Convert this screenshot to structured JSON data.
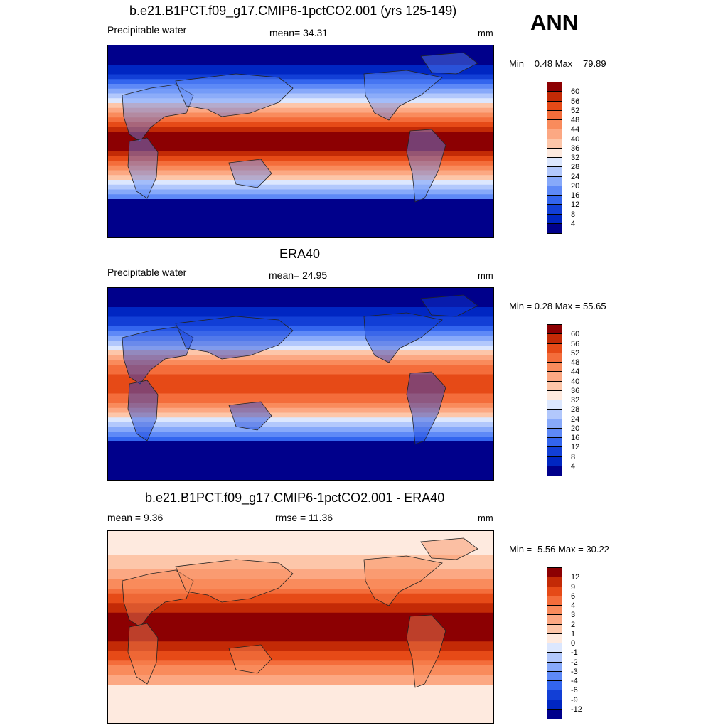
{
  "season": "ANN",
  "palette_abs": [
    "#00008b",
    "#0026c2",
    "#123fd6",
    "#3365ee",
    "#5e89f7",
    "#87a9fa",
    "#b2c8fc",
    "#dce7fe",
    "#feeadf",
    "#fdc6a9",
    "#fca883",
    "#f98b5c",
    "#f46d3b",
    "#e64a17",
    "#c32a06",
    "#8c0002"
  ],
  "palette_diff": [
    "#00008b",
    "#0026c2",
    "#123fd6",
    "#3365ee",
    "#5e89f7",
    "#87a9fa",
    "#b2c8fc",
    "#dce7fe",
    "#feeadf",
    "#fdc6a9",
    "#fca883",
    "#f98b5c",
    "#f46d3b",
    "#e64a17",
    "#c32a06",
    "#8c0002"
  ],
  "panels": [
    {
      "title": "b.e21.B1PCT.f09_g17.CMIP6-1pctCO2.001 (yrs 125-149)",
      "left_label": "Precipitable water",
      "center_label": "mean=  34.31",
      "units": "mm",
      "minmax": "Min =   0.48 Max =  79.89",
      "levels": [
        "60",
        "56",
        "52",
        "48",
        "44",
        "40",
        "36",
        "32",
        "28",
        "24",
        "20",
        "16",
        "12",
        "8",
        "4"
      ],
      "field": {
        "tropical_peak_level": 15,
        "polar_level": 0,
        "land_dry_level": 4
      }
    },
    {
      "title": "ERA40",
      "left_label": "Precipitable water",
      "center_label": "mean=  24.95",
      "units": "mm",
      "minmax": "Min =   0.28 Max =  55.65",
      "levels": [
        "60",
        "56",
        "52",
        "48",
        "44",
        "40",
        "36",
        "32",
        "28",
        "24",
        "20",
        "16",
        "12",
        "8",
        "4"
      ],
      "field": {
        "tropical_peak_level": 13,
        "polar_level": 0,
        "land_dry_level": 2
      }
    },
    {
      "title": "b.e21.B1PCT.f09_g17.CMIP6-1pctCO2.001 - ERA40",
      "left_label": "mean =   9.36",
      "center_label": "rmse =  11.36",
      "units": "mm",
      "minmax": "Min =  -5.56 Max =  30.22",
      "levels": [
        "12",
        "9",
        "6",
        "4",
        "3",
        "2",
        "1",
        "0",
        "-1",
        "-2",
        "-3",
        "-4",
        "-6",
        "-9",
        "-12"
      ],
      "field": {
        "tropical_peak_level": 15,
        "polar_level": 8,
        "land_dry_level": 11
      }
    }
  ]
}
